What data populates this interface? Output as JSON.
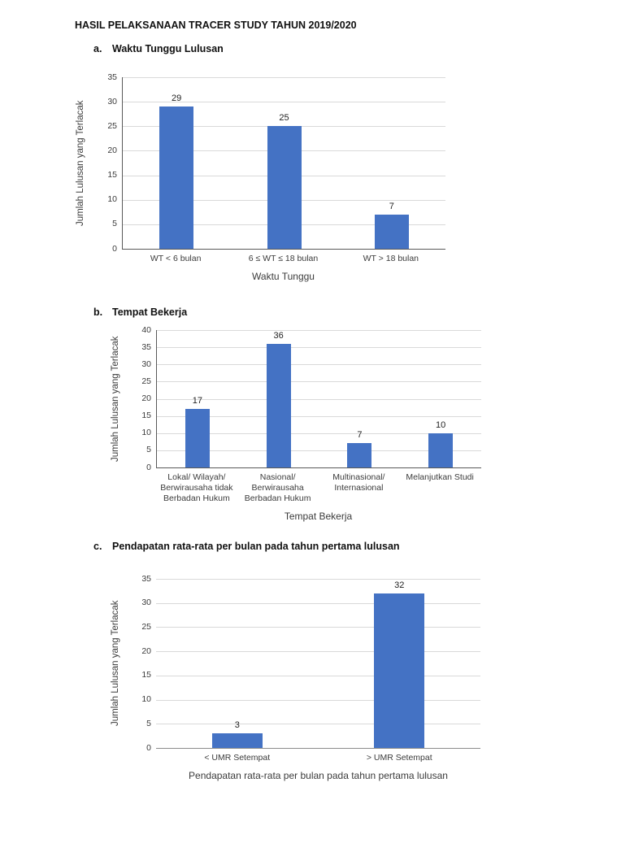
{
  "page": {
    "title": "HASIL PELAKSANAAN TRACER STUDY TAHUN 2019/2020"
  },
  "colors": {
    "bar_fill": "#4472C4",
    "gridline": "#D9D9D9",
    "axis_line": "#595959",
    "chart_text": "#3B3B3B",
    "heading_text": "#111111"
  },
  "sections": [
    {
      "index_label": "a.",
      "heading": "Waktu Tunggu Lulusan"
    },
    {
      "index_label": "b.",
      "heading": "Tempat Bekerja"
    },
    {
      "index_label": "c.",
      "heading": "Pendapatan rata-rata per bulan pada tahun pertama lulusan"
    }
  ],
  "chart_data": [
    {
      "type": "bar",
      "title": "Waktu Tunggu Lulusan",
      "categories": [
        "WT < 6 bulan",
        "6 ≤ WT ≤ 18 bulan",
        "WT > 18 bulan"
      ],
      "values": [
        29,
        25,
        7
      ],
      "xlabel": "Waktu Tunggu",
      "ylabel": "Jumlah Lulusan yang Terlacak",
      "ylim": [
        0,
        35
      ],
      "yticks": [
        0,
        5,
        10,
        15,
        20,
        25,
        30,
        35
      ],
      "grid": true,
      "legend": "none",
      "data_labels": true,
      "y_axis_line": true,
      "axis_color": "#595959"
    },
    {
      "type": "bar",
      "title": "Tempat Bekerja",
      "categories": [
        "Lokal/ Wilayah/ Berwirausaha tidak Berbadan Hukum",
        "Nasional/ Berwirausaha Berbadan Hukum",
        "Multinasional/ Internasional",
        "Melanjutkan Studi"
      ],
      "values": [
        17,
        36,
        7,
        10
      ],
      "xlabel": "Tempat Bekerja",
      "ylabel": "Jumlah Lulusan yang Terlacak",
      "ylim": [
        0,
        40
      ],
      "yticks": [
        0,
        5,
        10,
        15,
        20,
        25,
        30,
        35,
        40
      ],
      "grid": true,
      "legend": "none",
      "data_labels": true,
      "y_axis_line": true,
      "axis_color": "#595959"
    },
    {
      "type": "bar",
      "title": "Pendapatan rata-rata per bulan pada tahun pertama lulusan",
      "categories": [
        "< UMR Setempat",
        "> UMR Setempat"
      ],
      "values": [
        3,
        32
      ],
      "xlabel": "Pendapatan rata-rata per bulan pada tahun pertama lulusan",
      "ylabel": "Jumlah Lulusan yang Terlacak",
      "ylim": [
        0,
        35
      ],
      "yticks": [
        0,
        5,
        10,
        15,
        20,
        25,
        30,
        35
      ],
      "grid": true,
      "legend": "none",
      "data_labels": true,
      "y_axis_line": false,
      "axis_color": "#8C8C8C"
    }
  ]
}
